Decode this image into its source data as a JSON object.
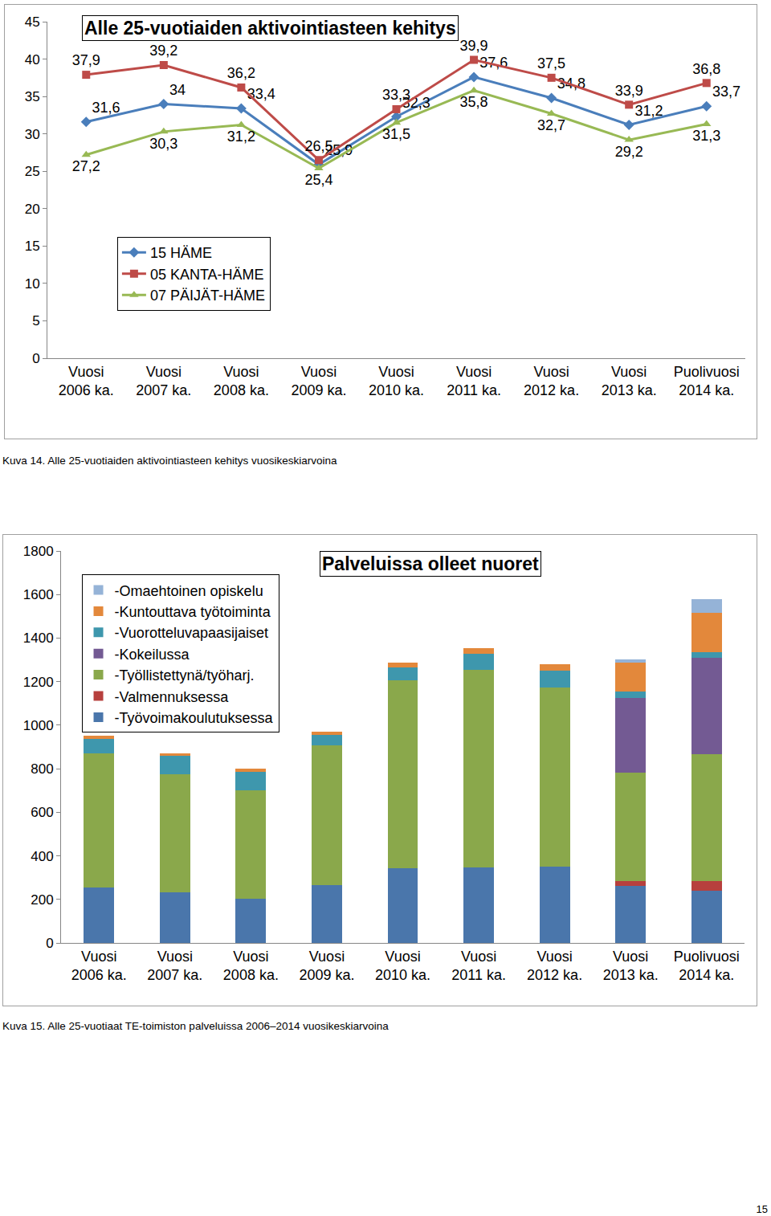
{
  "chart_data": [
    {
      "type": "line",
      "title": "Alle 25-vuotiaiden aktivointiasteen kehitys",
      "categories": [
        "Vuosi 2006 ka.",
        "Vuosi 2007 ka.",
        "Vuosi 2008 ka.",
        "Vuosi 2009 ka.",
        "Vuosi 2010 ka.",
        "Vuosi 2011 ka.",
        "Vuosi 2012 ka.",
        "Vuosi 2013 ka.",
        "Puolivuosi 2014 ka."
      ],
      "series": [
        {
          "name": "15 HÄME",
          "color": "#4a7ebb",
          "marker": "diamond",
          "values": [
            31.6,
            34,
            33.4,
            25.9,
            32.3,
            37.6,
            34.8,
            31.2,
            33.7
          ],
          "value_labels": [
            "31,6",
            "34",
            "33,4",
            "25,9",
            "32,3",
            "37,6",
            "34,8",
            "31,2",
            "33,7"
          ]
        },
        {
          "name": "05 KANTA-HÄME",
          "color": "#be4b48",
          "marker": "square",
          "values": [
            37.9,
            39.2,
            36.2,
            26.5,
            33.3,
            39.9,
            37.5,
            33.9,
            36.8
          ],
          "value_labels": [
            "37,9",
            "39,2",
            "36,2",
            "26,5",
            "33,3",
            "39,9",
            "37,5",
            "33,9",
            "36,8"
          ]
        },
        {
          "name": "07 PÄIJÄT-HÄME",
          "color": "#98b954",
          "marker": "triangle-up",
          "values": [
            27.2,
            30.3,
            31.2,
            25.4,
            31.5,
            35.8,
            32.7,
            29.2,
            31.3
          ],
          "value_labels": [
            "27,2",
            "30,3",
            "31,2",
            "25,4",
            "31,5",
            "35,8",
            "32,7",
            "29,2",
            "31,3"
          ]
        }
      ],
      "ylim": [
        0,
        45
      ],
      "yticks": [
        0,
        5,
        10,
        15,
        20,
        25,
        30,
        35,
        40,
        45
      ],
      "grid": false,
      "legend": "left",
      "data_labels": true
    },
    {
      "type": "bar",
      "title": "Palveluissa olleet nuoret",
      "stacked": true,
      "categories": [
        "Vuosi 2006 ka.",
        "Vuosi 2007 ka.",
        "Vuosi 2008 ka.",
        "Vuosi 2009 ka.",
        "Vuosi 2010 ka.",
        "Vuosi 2011 ka.",
        "Vuosi 2012 ka.",
        "Vuosi 2013 ka.",
        "Puolivuosi 2014 ka."
      ],
      "series": [
        {
          "name": "-Työvoimakoulutuksessa",
          "color": "#4a76ab",
          "values": [
            255,
            232,
            203,
            266,
            343,
            347,
            350,
            262,
            240
          ]
        },
        {
          "name": "-Valmennuksessa",
          "color": "#b7403d",
          "values": [
            0,
            0,
            0,
            0,
            0,
            0,
            0,
            22,
            44
          ]
        },
        {
          "name": "-Työllistettynä/työharj.",
          "color": "#8aa84b",
          "values": [
            615,
            543,
            498,
            641,
            863,
            907,
            823,
            498,
            583
          ]
        },
        {
          "name": "-Kokeilussa",
          "color": "#735a93",
          "values": [
            0,
            0,
            0,
            0,
            0,
            0,
            0,
            343,
            442
          ]
        },
        {
          "name": "-Vuorotteluvapaasijaiset",
          "color": "#3e97ad",
          "values": [
            67,
            85,
            85,
            48,
            59,
            74,
            77,
            30,
            26
          ]
        },
        {
          "name": "-Kuntouttava työtoiminta",
          "color": "#e3883b",
          "values": [
            13,
            10,
            14,
            15,
            22,
            26,
            30,
            132,
            181
          ]
        },
        {
          "name": "-Omaehtoinen opiskelu",
          "color": "#95b3d7",
          "values": [
            0,
            0,
            0,
            0,
            0,
            0,
            0,
            15,
            63
          ]
        }
      ],
      "ylim": [
        0,
        1800
      ],
      "yticks": [
        0,
        200,
        400,
        600,
        800,
        1000,
        1200,
        1400,
        1600,
        1800
      ],
      "grid": false,
      "legend": "upper left"
    }
  ],
  "captions": [
    "Kuva 14. Alle 25-vuotiaiden aktivointiasteen kehitys vuosikeskiarvoina",
    "Kuva 15. Alle 25-vuotiaat TE-toimiston palveluissa 2006–2014 vuosikeskiarvoina"
  ],
  "page_number": 15
}
